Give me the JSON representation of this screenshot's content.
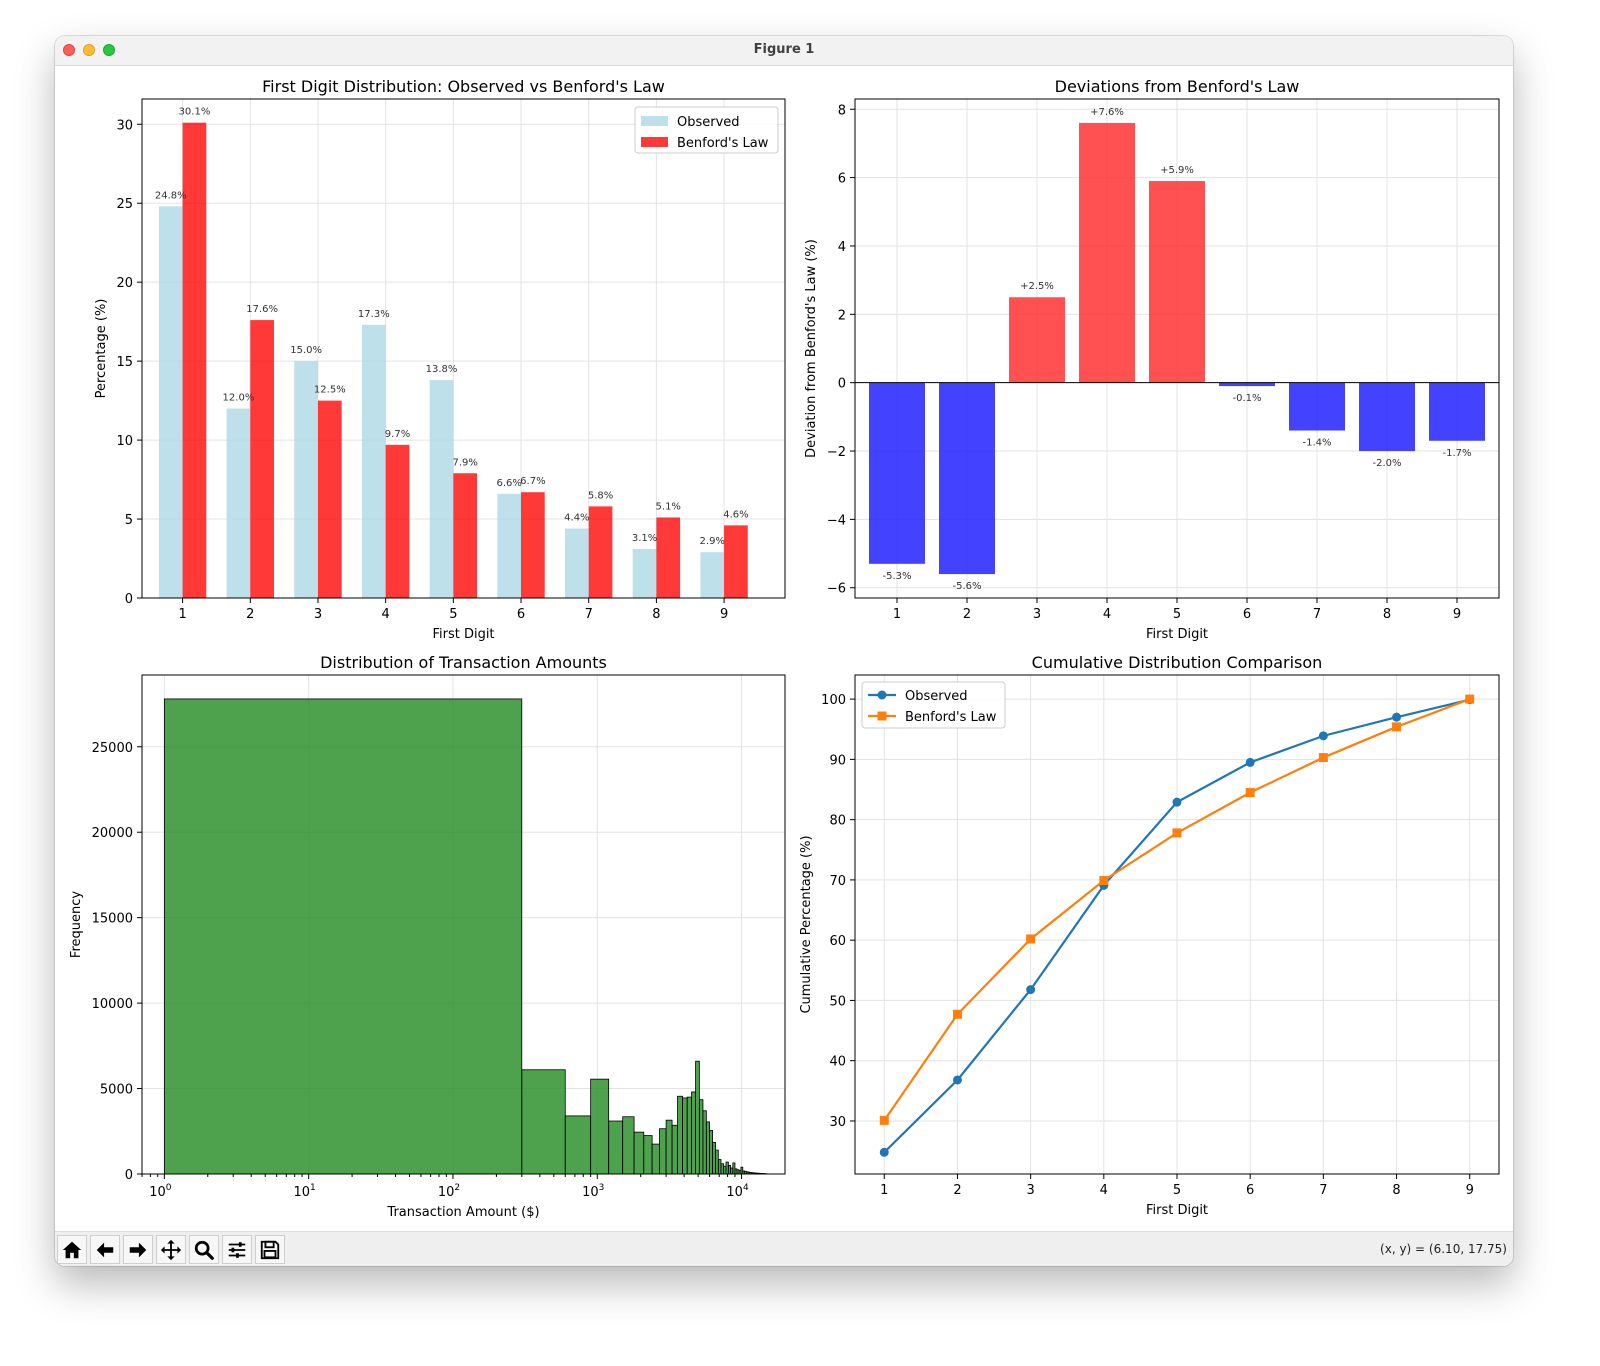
{
  "window": {
    "title": "Figure 1"
  },
  "toolbar": {
    "buttons": [
      "home-icon",
      "back-arrow-icon",
      "forward-arrow-icon",
      "pan-icon",
      "zoom-icon",
      "configure-subplots-icon",
      "save-icon"
    ],
    "coords": "(x, y) = (6.10, 17.75)"
  },
  "colors": {
    "observed": "#add8e6",
    "benford": "#ff0000",
    "pos": "#ff3333",
    "neg": "#2222ff",
    "hist": "#228b22",
    "line_obs": "#1f77b4",
    "line_ben": "#ff7f0e"
  },
  "chart_data": [
    {
      "type": "bar",
      "title": "First Digit Distribution: Observed vs Benford's Law",
      "xlabel": "First Digit",
      "ylabel": "Percentage (%)",
      "categories": [
        "1",
        "2",
        "3",
        "4",
        "5",
        "6",
        "7",
        "8",
        "9"
      ],
      "ylim": [
        0,
        31.6
      ],
      "yticks": [
        0,
        5,
        10,
        15,
        20,
        25,
        30
      ],
      "grid": true,
      "legend": "upper right",
      "series": [
        {
          "name": "Observed",
          "values": [
            24.8,
            12.0,
            15.0,
            17.3,
            13.8,
            6.6,
            4.4,
            3.1,
            2.9
          ],
          "labels": [
            "24.8%",
            "12.0%",
            "15.0%",
            "17.3%",
            "13.8%",
            "6.6%",
            "4.4%",
            "3.1%",
            "2.9%"
          ]
        },
        {
          "name": "Benford's Law",
          "values": [
            30.1,
            17.6,
            12.5,
            9.7,
            7.9,
            6.7,
            5.8,
            5.1,
            4.6
          ],
          "labels": [
            "30.1%",
            "17.6%",
            "12.5%",
            "9.7%",
            "7.9%",
            "6.7%",
            "5.8%",
            "5.1%",
            "4.6%"
          ]
        }
      ]
    },
    {
      "type": "bar",
      "title": "Deviations from Benford's Law",
      "xlabel": "First Digit",
      "ylabel": "Deviation from Benford's Law (%)",
      "categories": [
        "1",
        "2",
        "3",
        "4",
        "5",
        "6",
        "7",
        "8",
        "9"
      ],
      "ylim": [
        -6.3,
        8.3
      ],
      "yticks": [
        -6,
        -4,
        -2,
        0,
        2,
        4,
        6,
        8
      ],
      "grid": true,
      "values": [
        -5.3,
        -5.6,
        2.5,
        7.6,
        5.9,
        -0.1,
        -1.4,
        -2.0,
        -1.7
      ],
      "labels": [
        "-5.3%",
        "-5.6%",
        "+2.5%",
        "+7.6%",
        "+5.9%",
        "-0.1%",
        "-1.4%",
        "-2.0%",
        "-1.7%"
      ]
    },
    {
      "type": "histogram",
      "title": "Distribution of Transaction Amounts",
      "xlabel": "Transaction Amount ($)",
      "ylabel": "Frequency",
      "xscale": "log",
      "xlim": [
        0.7,
        20000
      ],
      "ylim": [
        0,
        29200
      ],
      "yticks": [
        0,
        5000,
        10000,
        15000,
        20000,
        25000
      ],
      "xticks": [
        {
          "base": "10",
          "exp": "0",
          "value": 1
        },
        {
          "base": "10",
          "exp": "1",
          "value": 10
        },
        {
          "base": "10",
          "exp": "2",
          "value": 100
        },
        {
          "base": "10",
          "exp": "3",
          "value": 1000
        },
        {
          "base": "10",
          "exp": "4",
          "value": 10000
        }
      ],
      "grid": true,
      "bins": [
        [
          1,
          300,
          27800
        ],
        [
          300,
          600,
          6100
        ],
        [
          600,
          900,
          3400
        ],
        [
          900,
          1200,
          5550
        ],
        [
          1200,
          1500,
          3100
        ],
        [
          1500,
          1800,
          3350
        ],
        [
          1800,
          2100,
          2450
        ],
        [
          2100,
          2400,
          2250
        ],
        [
          2400,
          2700,
          1750
        ],
        [
          2700,
          3000,
          2650
        ],
        [
          3000,
          3300,
          3150
        ],
        [
          3300,
          3600,
          2850
        ],
        [
          3600,
          3900,
          4550
        ],
        [
          3900,
          4200,
          4450
        ],
        [
          4200,
          4500,
          4500
        ],
        [
          4500,
          4800,
          4800
        ],
        [
          4800,
          5100,
          6600
        ],
        [
          5100,
          5400,
          4350
        ],
        [
          5400,
          5700,
          3700
        ],
        [
          5700,
          6000,
          3050
        ],
        [
          6000,
          6300,
          2550
        ],
        [
          6300,
          6600,
          1850
        ],
        [
          6600,
          6900,
          1400
        ],
        [
          6900,
          7200,
          850
        ],
        [
          7200,
          7500,
          600
        ],
        [
          7500,
          7800,
          450
        ],
        [
          7800,
          8100,
          700
        ],
        [
          8100,
          8400,
          500
        ],
        [
          8400,
          8700,
          350
        ],
        [
          8700,
          9000,
          650
        ],
        [
          9000,
          9300,
          300
        ],
        [
          9300,
          9600,
          250
        ],
        [
          9600,
          9900,
          200
        ],
        [
          9900,
          10200,
          400
        ],
        [
          10200,
          10500,
          180
        ],
        [
          10500,
          10800,
          160
        ],
        [
          10800,
          11100,
          130
        ],
        [
          11100,
          11400,
          110
        ],
        [
          11400,
          11700,
          90
        ],
        [
          11700,
          12000,
          80
        ],
        [
          12000,
          12300,
          70
        ],
        [
          12300,
          12600,
          60
        ],
        [
          12600,
          12900,
          50
        ],
        [
          12900,
          13200,
          45
        ],
        [
          13200,
          13500,
          40
        ],
        [
          13500,
          13800,
          35
        ],
        [
          13800,
          14100,
          30
        ],
        [
          14100,
          14400,
          25
        ],
        [
          14400,
          14700,
          20
        ],
        [
          14700,
          15000,
          15
        ]
      ]
    },
    {
      "type": "line",
      "title": "Cumulative Distribution Comparison",
      "xlabel": "First Digit",
      "ylabel": "Cumulative Percentage (%)",
      "x": [
        1,
        2,
        3,
        4,
        5,
        6,
        7,
        8,
        9
      ],
      "xlim": [
        0.6,
        9.4
      ],
      "ylim": [
        21.2,
        104.0
      ],
      "yticks": [
        30,
        40,
        50,
        60,
        70,
        80,
        90,
        100
      ],
      "grid": true,
      "legend": "upper left",
      "series": [
        {
          "name": "Observed",
          "marker": "circle",
          "values": [
            24.8,
            36.8,
            51.8,
            69.1,
            82.9,
            89.5,
            93.9,
            97.0,
            99.9
          ]
        },
        {
          "name": "Benford's Law",
          "marker": "square",
          "values": [
            30.1,
            47.7,
            60.2,
            69.9,
            77.8,
            84.5,
            90.3,
            95.4,
            100.0
          ]
        }
      ]
    }
  ]
}
